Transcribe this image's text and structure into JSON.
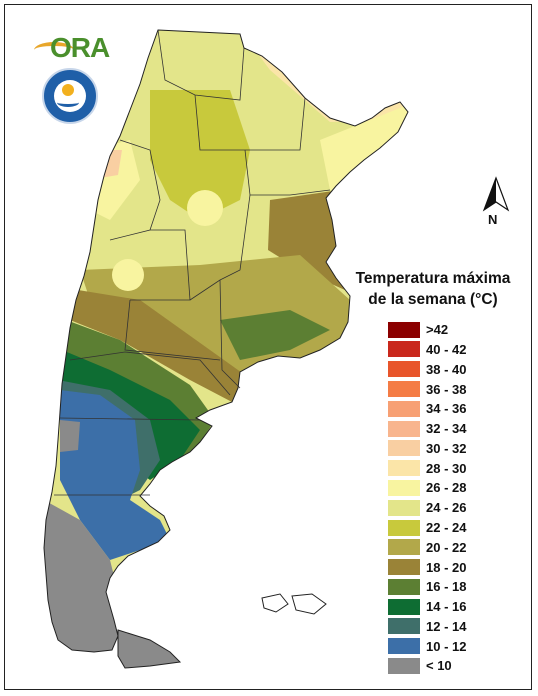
{
  "legend": {
    "title_line1": "Temperatura máxima",
    "title_line2": "de la semana (°C)",
    "items": [
      {
        "label": ">42",
        "color": "#8b0000"
      },
      {
        "label": "40 - 42",
        "color": "#c9281c"
      },
      {
        "label": "38 - 40",
        "color": "#e8552b"
      },
      {
        "label": "36 - 38",
        "color": "#f47c45"
      },
      {
        "label": "34 - 36",
        "color": "#f7a074"
      },
      {
        "label": "32 - 34",
        "color": "#f8b58e"
      },
      {
        "label": "30 - 32",
        "color": "#f9cfa2"
      },
      {
        "label": "28 - 30",
        "color": "#fbe5a8"
      },
      {
        "label": "26 - 28",
        "color": "#f8f4a0"
      },
      {
        "label": "24 - 26",
        "color": "#e3e58a"
      },
      {
        "label": "22 - 24",
        "color": "#c8c93c"
      },
      {
        "label": "20 - 22",
        "color": "#b2a84a"
      },
      {
        "label": "18 - 20",
        "color": "#9a8337"
      },
      {
        "label": "16 - 18",
        "color": "#5c7f33"
      },
      {
        "label": "14 - 16",
        "color": "#0e6d33"
      },
      {
        "label": "12 - 14",
        "color": "#3f6f6a"
      },
      {
        "label": "10 - 12",
        "color": "#3c6fa8"
      },
      {
        "label": "< 10",
        "color": "#8a8a8a"
      }
    ]
  },
  "logos": {
    "ora": "ORA",
    "smn_icon": "smn-seal"
  },
  "north_arrow": {
    "label": "N"
  },
  "map_bands": [
    {
      "range": "< 10",
      "color": "#8a8a8a"
    },
    {
      "range": "10 - 12",
      "color": "#3c6fa8"
    },
    {
      "range": "12 - 14",
      "color": "#3f6f6a"
    },
    {
      "range": "14 - 16",
      "color": "#0e6d33"
    },
    {
      "range": "16 - 18",
      "color": "#5c7f33"
    },
    {
      "range": "18 - 20",
      "color": "#9a8337"
    },
    {
      "range": "20 - 22",
      "color": "#b2a84a"
    },
    {
      "range": "22 - 24",
      "color": "#c8c93c"
    },
    {
      "range": "24 - 26",
      "color": "#e3e58a"
    },
    {
      "range": "26 - 28",
      "color": "#f8f4a0"
    },
    {
      "range": "28 - 30",
      "color": "#fbe5a8"
    },
    {
      "range": "30 - 32",
      "color": "#f9cfa2"
    }
  ]
}
